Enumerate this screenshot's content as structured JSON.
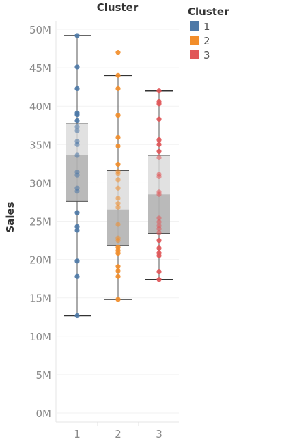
{
  "chart_data": {
    "type": "box-plot",
    "title": "Cluster",
    "ylabel": "Sales",
    "ylim": [
      0,
      50
    ],
    "yticks": [
      {
        "value": 0,
        "label": "0M"
      },
      {
        "value": 5,
        "label": "5M"
      },
      {
        "value": 10,
        "label": "10M"
      },
      {
        "value": 15,
        "label": "15M"
      },
      {
        "value": 20,
        "label": "20M"
      },
      {
        "value": 25,
        "label": "25M"
      },
      {
        "value": 30,
        "label": "30M"
      },
      {
        "value": 35,
        "label": "35M"
      },
      {
        "value": 40,
        "label": "40M"
      },
      {
        "value": 45,
        "label": "45M"
      },
      {
        "value": 50,
        "label": "50M"
      }
    ],
    "categories": [
      "1",
      "2",
      "3"
    ],
    "legend": {
      "title": "Cluster",
      "position": "top-right",
      "items": [
        {
          "label": "1",
          "color": "#4e79a7"
        },
        {
          "label": "2",
          "color": "#f28e2b"
        },
        {
          "label": "3",
          "color": "#e15759"
        }
      ]
    },
    "series": [
      {
        "category": "1",
        "color": "#4e79a7",
        "box": {
          "whisker_low": 12.7,
          "q1": 27.6,
          "median": 33.6,
          "q3": 37.7,
          "whisker_high": 49.2
        },
        "points": [
          49.2,
          45.1,
          42.3,
          39.1,
          38.9,
          38.1,
          37.3,
          36.8,
          35.4,
          35.0,
          33.6,
          31.4,
          31.0,
          29.3,
          28.9,
          26.1,
          24.3,
          23.8,
          19.8,
          17.8,
          12.7
        ]
      },
      {
        "category": "2",
        "color": "#f28e2b",
        "box": {
          "whisker_low": 14.8,
          "q1": 21.8,
          "median": 26.5,
          "q3": 31.6,
          "whisker_high": 44.0
        },
        "points": [
          47.0,
          44.0,
          42.3,
          38.8,
          35.9,
          34.8,
          32.4,
          31.5,
          31.2,
          30.4,
          29.3,
          28.0,
          27.3,
          26.8,
          24.6,
          22.8,
          22.5,
          21.6,
          21.2,
          20.8,
          19.1,
          18.5,
          17.8,
          14.8
        ]
      },
      {
        "category": "3",
        "color": "#e15759",
        "box": {
          "whisker_low": 17.4,
          "q1": 23.4,
          "median": 28.5,
          "q3": 33.6,
          "whisker_high": 42.0
        },
        "points": [
          42.0,
          40.6,
          40.3,
          38.3,
          35.6,
          35.0,
          34.1,
          33.3,
          31.1,
          30.8,
          28.8,
          28.5,
          25.4,
          24.9,
          24.4,
          24.0,
          23.5,
          22.5,
          21.5,
          20.9,
          20.5,
          18.4,
          17.4
        ]
      }
    ]
  }
}
